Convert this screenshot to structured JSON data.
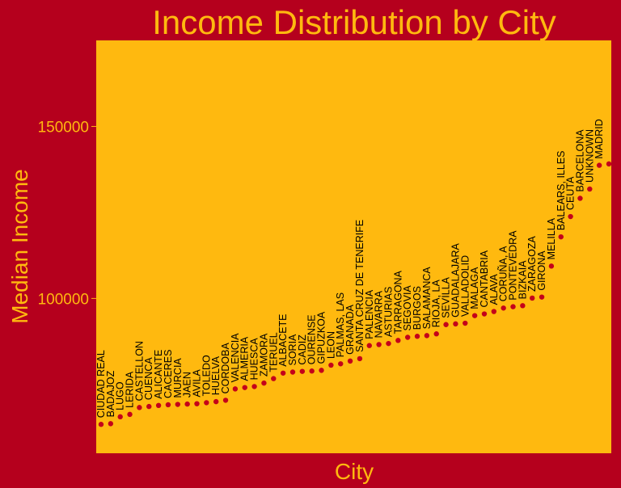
{
  "colors": {
    "background": "#b5001d",
    "plot_background": "#ffb90f",
    "text": "#ffb90f",
    "point": "#c4001a",
    "label_text": "#000000"
  },
  "chart_data": {
    "type": "scatter",
    "title": "Income Distribution by City",
    "xlabel": "City",
    "ylabel": "Median Income",
    "ylim": [
      55000,
      175000
    ],
    "yticks": [
      100000,
      150000
    ],
    "grid": false,
    "points": [
      {
        "city": "CIUDAD REAL",
        "value": 63400
      },
      {
        "city": "BADAJOZ",
        "value": 63600
      },
      {
        "city": "LUGO",
        "value": 65600
      },
      {
        "city": "LERIDA",
        "value": 66300
      },
      {
        "city": "CASTELLON",
        "value": 68300
      },
      {
        "city": "CUENCA",
        "value": 68600
      },
      {
        "city": "ALICANTE",
        "value": 68900
      },
      {
        "city": "CACERES",
        "value": 69100
      },
      {
        "city": "MURCIA",
        "value": 69200
      },
      {
        "city": "JAEN",
        "value": 69300
      },
      {
        "city": "AVILA",
        "value": 69400
      },
      {
        "city": "TOLEDO",
        "value": 69700
      },
      {
        "city": "HUELVA",
        "value": 70000
      },
      {
        "city": "CORDOBA",
        "value": 70400
      },
      {
        "city": "VALENCIA",
        "value": 73700
      },
      {
        "city": "ALMERIA",
        "value": 74100
      },
      {
        "city": "HUESCA",
        "value": 74400
      },
      {
        "city": "ZAMORA",
        "value": 75400
      },
      {
        "city": "TERUEL",
        "value": 76700
      },
      {
        "city": "ALBACETE",
        "value": 78300
      },
      {
        "city": "SORIA",
        "value": 78600
      },
      {
        "city": "CADIZ",
        "value": 78800
      },
      {
        "city": "OURENSE",
        "value": 78900
      },
      {
        "city": "GIPUZKOA",
        "value": 79100
      },
      {
        "city": "LEON",
        "value": 80600
      },
      {
        "city": "PALMAS, LAS",
        "value": 81000
      },
      {
        "city": "GRANADA",
        "value": 81800
      },
      {
        "city": "SANTA CRUZ DE TENERIFE",
        "value": 82500
      },
      {
        "city": "PALENCIA",
        "value": 86300
      },
      {
        "city": "NAVARRA",
        "value": 86600
      },
      {
        "city": "ASTURIAS",
        "value": 86900
      },
      {
        "city": "TARRAGONA",
        "value": 87800
      },
      {
        "city": "SEGOVIA",
        "value": 88700
      },
      {
        "city": "BURGOS",
        "value": 89000
      },
      {
        "city": "SALAMANCA",
        "value": 89200
      },
      {
        "city": "RIOJA, LA",
        "value": 89700
      },
      {
        "city": "SEVILLA",
        "value": 92400
      },
      {
        "city": "GUADALAJARA",
        "value": 92600
      },
      {
        "city": "VALLADOLID",
        "value": 92800
      },
      {
        "city": "MALAGA",
        "value": 95000
      },
      {
        "city": "CANTABRIA",
        "value": 95500
      },
      {
        "city": "ALAVA",
        "value": 96200
      },
      {
        "city": "CORUÑA, A",
        "value": 97200
      },
      {
        "city": "PONTEVEDRA",
        "value": 97600
      },
      {
        "city": "BIZKAIA",
        "value": 97900
      },
      {
        "city": "ZARAGOZA",
        "value": 100100
      },
      {
        "city": "GIRONA",
        "value": 100400
      },
      {
        "city": "MELILLA",
        "value": 109400
      },
      {
        "city": "BALEARS, ILLES",
        "value": 117900
      },
      {
        "city": "CEUTA",
        "value": 123800
      },
      {
        "city": "BARCELONA",
        "value": 129100
      },
      {
        "city": "UNKNOWN",
        "value": 131800
      },
      {
        "city": "MADRID",
        "value": 138700
      },
      {
        "city": "",
        "value": 139100
      }
    ]
  }
}
